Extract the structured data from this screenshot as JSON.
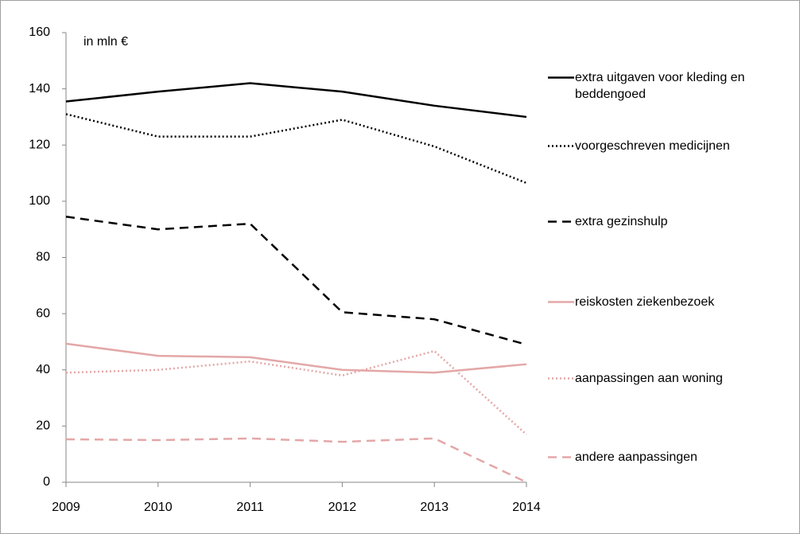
{
  "chart_data": {
    "type": "line",
    "annotation": "in mln €",
    "x": [
      2009,
      2010,
      2011,
      2012,
      2013,
      2014
    ],
    "xlim": [
      2009,
      2014
    ],
    "xticks": [
      2009,
      2010,
      2011,
      2012,
      2013,
      2014
    ],
    "ylim": [
      0,
      160
    ],
    "yticks": [
      0,
      20,
      40,
      60,
      80,
      100,
      120,
      140,
      160
    ],
    "legend": "right",
    "series": [
      {
        "name": "extra uitgaven voor kleding en beddengoed",
        "color": "#000000",
        "dash": "solid",
        "values": [
          135.5,
          139,
          142,
          139,
          134,
          130
        ]
      },
      {
        "name": "voorgeschreven medicijnen",
        "color": "#000000",
        "dash": "dotted",
        "values": [
          131,
          123,
          123,
          129,
          119.5,
          106.5
        ]
      },
      {
        "name": "extra gezinshulp",
        "color": "#000000",
        "dash": "dashed",
        "values": [
          94.5,
          90,
          92,
          60.5,
          58,
          49
        ]
      },
      {
        "name": "reiskosten ziekenbezoek",
        "color": "#e4a7a7",
        "dash": "solid",
        "values": [
          49.3,
          45,
          44.5,
          40,
          39,
          42
        ]
      },
      {
        "name": "aanpassingen aan woning",
        "color": "#e4a7a7",
        "dash": "dotted",
        "values": [
          39,
          40,
          43,
          38,
          46.7,
          17
        ]
      },
      {
        "name": "andere aanpassingen",
        "color": "#e4a7a7",
        "dash": "dashed",
        "values": [
          15.3,
          15,
          15.6,
          14.4,
          15.6,
          0
        ]
      }
    ]
  }
}
